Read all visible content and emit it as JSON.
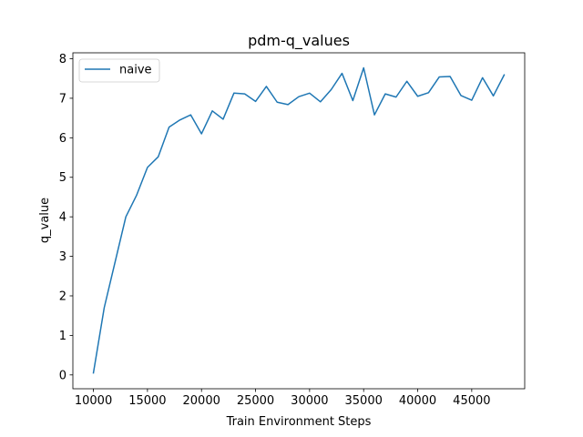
{
  "chart_data": {
    "type": "line",
    "title": "pdm-q_values",
    "xlabel": "Train Environment Steps",
    "ylabel": "q_value",
    "xlim": [
      8100,
      49900
    ],
    "ylim": [
      -0.35,
      8.15
    ],
    "xticks": [
      10000,
      15000,
      20000,
      25000,
      30000,
      35000,
      40000,
      45000
    ],
    "yticks": [
      0,
      1,
      2,
      3,
      4,
      5,
      6,
      7,
      8
    ],
    "grid": false,
    "legend_position": "upper left",
    "series": [
      {
        "name": "naive",
        "color": "#1f77b4",
        "x": [
          10000,
          11000,
          12000,
          13000,
          14000,
          15000,
          16000,
          17000,
          18000,
          19000,
          20000,
          21000,
          22000,
          23000,
          24000,
          25000,
          26000,
          27000,
          28000,
          29000,
          30000,
          31000,
          32000,
          33000,
          34000,
          35000,
          36000,
          37000,
          38000,
          39000,
          40000,
          41000,
          42000,
          43000,
          44000,
          45000,
          46000,
          47000,
          48000
        ],
        "y": [
          0.05,
          1.7,
          2.85,
          4.0,
          4.55,
          5.25,
          5.52,
          6.27,
          6.45,
          6.58,
          6.1,
          6.68,
          6.47,
          7.13,
          7.11,
          6.92,
          7.3,
          6.9,
          6.84,
          7.04,
          7.13,
          6.91,
          7.22,
          7.63,
          6.94,
          7.77,
          6.58,
          7.11,
          7.03,
          7.43,
          7.05,
          7.14,
          7.54,
          7.55,
          7.07,
          6.95,
          7.52,
          7.06,
          7.59
        ]
      }
    ]
  }
}
